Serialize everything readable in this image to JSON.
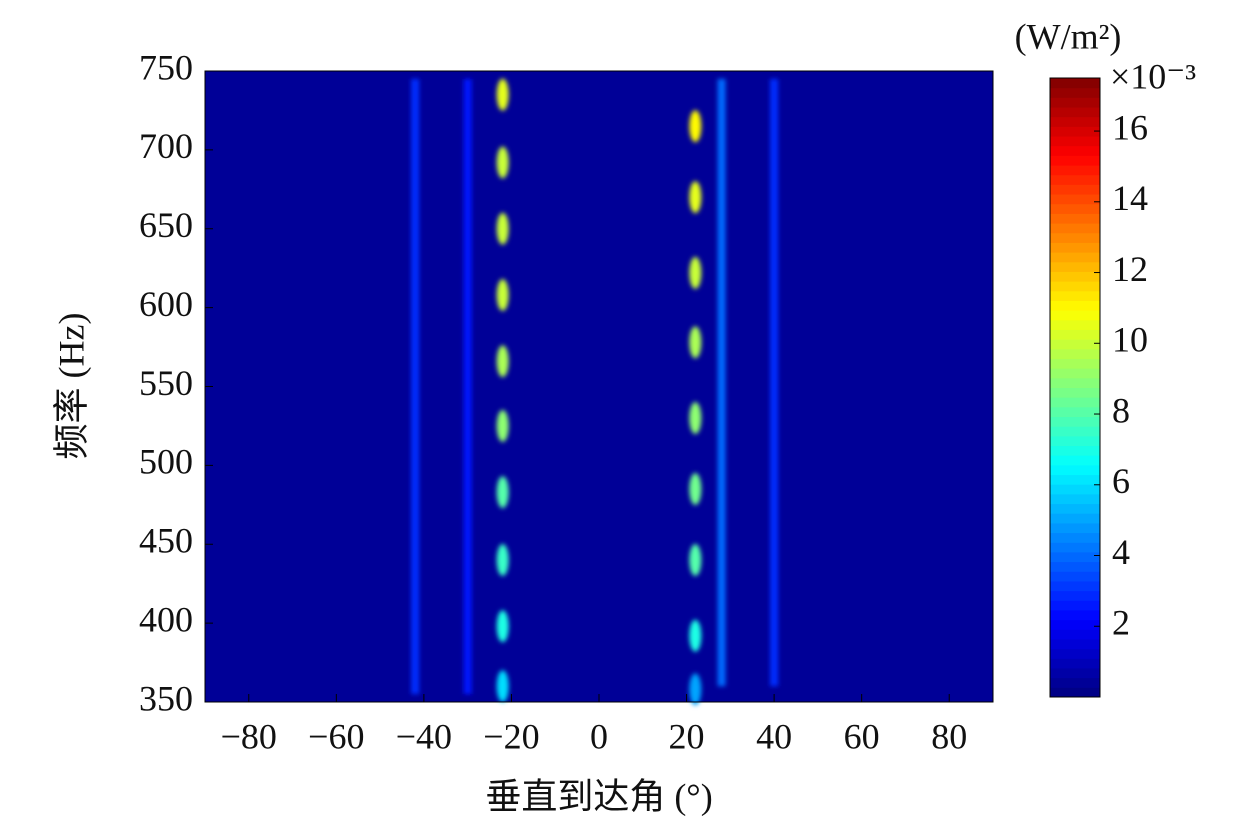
{
  "chart_data": {
    "type": "heatmap",
    "xlabel": "垂直到达角 (°)",
    "ylabel": "频率 (Hz)",
    "xlim": [
      -90,
      90
    ],
    "xticks": [
      {
        "value": -80,
        "label": "−80"
      },
      {
        "value": -60,
        "label": "−60"
      },
      {
        "value": -40,
        "label": "−40"
      },
      {
        "value": -20,
        "label": "−20"
      },
      0,
      20,
      40,
      60,
      80
    ],
    "ylim": [
      350,
      750
    ],
    "yticks": [
      350,
      400,
      450,
      500,
      550,
      600,
      650,
      700,
      750
    ],
    "clim": [
      0,
      17.5
    ],
    "cticks": [
      2,
      4,
      6,
      8,
      10,
      12,
      14,
      16
    ],
    "colorbar_unit": "(W/m²)",
    "colorbar_multiplier": "×10⁻³",
    "colormap": "jet",
    "background": 0.4,
    "streaks": {
      "x": [
        -42,
        -30,
        28,
        40
      ],
      "ymin": [
        355,
        355,
        360,
        360
      ],
      "ymax": [
        745,
        745,
        745,
        745
      ],
      "values": [
        3,
        2.5,
        4,
        3
      ]
    },
    "points": {
      "x": [
        -22,
        -22,
        -22,
        -22,
        -22,
        -22,
        -22,
        -22,
        -22,
        -22,
        22,
        22,
        22,
        22,
        22,
        22,
        22,
        22,
        22
      ],
      "y": [
        360,
        398,
        440,
        483,
        525,
        566,
        608,
        650,
        692,
        735,
        358,
        392,
        440,
        485,
        530,
        578,
        622,
        670,
        715
      ],
      "values": [
        6,
        7,
        7.5,
        8,
        9,
        9.5,
        10,
        10,
        10,
        10.5,
        5,
        7,
        8,
        8.5,
        9,
        9.5,
        10,
        10.5,
        11
      ]
    }
  }
}
